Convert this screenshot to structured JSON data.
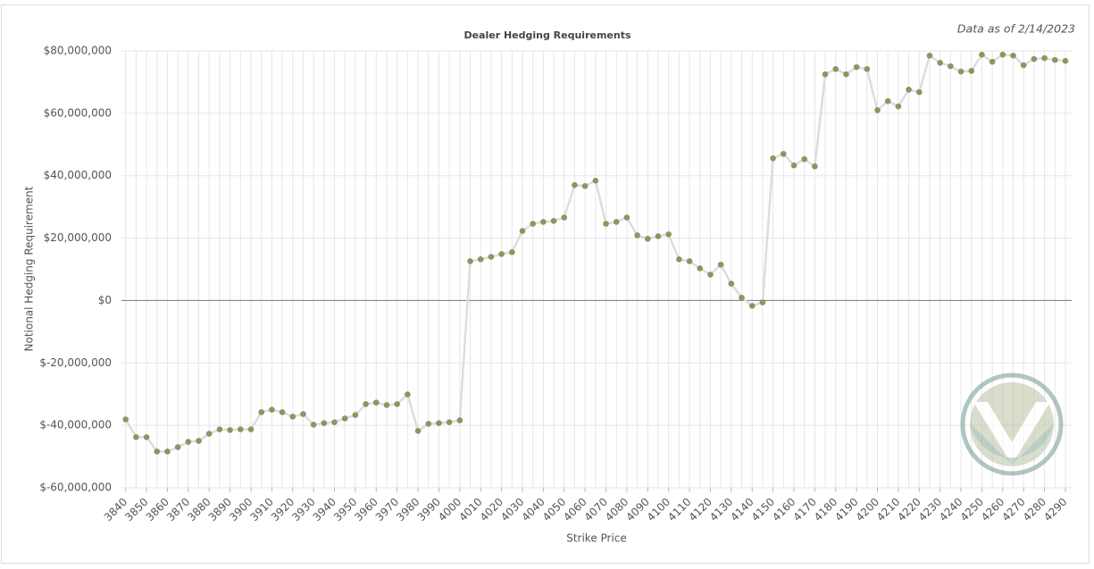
{
  "chart_data": {
    "type": "line",
    "title": "Dealer Hedging Requirements",
    "annotation": "Data as of 2/14/2023",
    "x_label": "Strike Price",
    "y_label": "Notional Hedging Requirement",
    "x": [
      3840,
      3845,
      3850,
      3855,
      3860,
      3865,
      3870,
      3875,
      3880,
      3885,
      3890,
      3895,
      3900,
      3905,
      3910,
      3915,
      3920,
      3925,
      3930,
      3935,
      3940,
      3945,
      3950,
      3955,
      3960,
      3965,
      3970,
      3975,
      3980,
      3985,
      3990,
      3995,
      4000,
      4005,
      4010,
      4015,
      4020,
      4025,
      4030,
      4035,
      4040,
      4045,
      4050,
      4055,
      4060,
      4065,
      4070,
      4075,
      4080,
      4085,
      4090,
      4095,
      4100,
      4105,
      4110,
      4115,
      4120,
      4125,
      4130,
      4135,
      4140,
      4145,
      4150,
      4155,
      4160,
      4165,
      4170,
      4175,
      4180,
      4185,
      4190,
      4195,
      4200,
      4205,
      4210,
      4215,
      4220,
      4225,
      4230,
      4235,
      4240,
      4245,
      4250,
      4255,
      4260,
      4265,
      4270,
      4275,
      4280,
      4285,
      4290
    ],
    "series": [
      {
        "name": "Dealer Hedging Requirement",
        "color": "#8f9460",
        "line_color": "#dddddd",
        "values": [
          -38100000,
          -43800000,
          -43800000,
          -48400000,
          -48400000,
          -47000000,
          -45300000,
          -45000000,
          -42700000,
          -41300000,
          -41500000,
          -41300000,
          -41300000,
          -35800000,
          -35000000,
          -35800000,
          -37200000,
          -36400000,
          -39800000,
          -39300000,
          -39000000,
          -37800000,
          -36700000,
          -33200000,
          -32700000,
          -33500000,
          -33200000,
          -30100000,
          -41800000,
          -39500000,
          -39300000,
          -39000000,
          -38400000,
          12600000,
          13200000,
          14000000,
          14900000,
          15500000,
          22300000,
          24600000,
          25200000,
          25500000,
          26600000,
          37000000,
          36700000,
          38400000,
          24600000,
          25200000,
          26600000,
          20900000,
          19800000,
          20600000,
          21200000,
          13200000,
          12600000,
          10300000,
          8300000,
          11500000,
          5400000,
          900000,
          -1700000,
          -600000,
          45600000,
          47000000,
          43300000,
          45300000,
          43000000,
          72500000,
          74200000,
          72500000,
          74800000,
          74200000,
          61000000,
          63900000,
          62200000,
          67600000,
          66800000,
          78500000,
          76200000,
          75100000,
          73400000,
          73600000,
          78800000,
          76500000,
          78800000,
          78500000,
          75400000,
          77400000,
          77700000,
          77100000,
          76800000
        ]
      }
    ],
    "xlim": [
      3838,
      4293
    ],
    "xticks": [
      3840,
      3850,
      3860,
      3870,
      3880,
      3890,
      3900,
      3910,
      3920,
      3930,
      3940,
      3950,
      3960,
      3970,
      3980,
      3990,
      4000,
      4010,
      4020,
      4030,
      4040,
      4050,
      4060,
      4070,
      4080,
      4090,
      4100,
      4110,
      4120,
      4130,
      4140,
      4150,
      4160,
      4170,
      4180,
      4190,
      4200,
      4210,
      4220,
      4230,
      4240,
      4250,
      4260,
      4270,
      4280,
      4290
    ],
    "ylim": [
      -60000000,
      80000000
    ],
    "yticks": [
      {
        "value": -60000000,
        "label": "$-60,000,000"
      },
      {
        "value": -40000000,
        "label": "$-40,000,000"
      },
      {
        "value": -20000000,
        "label": "$-20,000,000"
      },
      {
        "value": 0,
        "label": "$0"
      },
      {
        "value": 20000000,
        "label": "$20,000,000"
      },
      {
        "value": 40000000,
        "label": "$40,000,000"
      },
      {
        "value": 60000000,
        "label": "$60,000,000"
      },
      {
        "value": 80000000,
        "label": "$80,000,000"
      }
    ],
    "grid": true
  }
}
